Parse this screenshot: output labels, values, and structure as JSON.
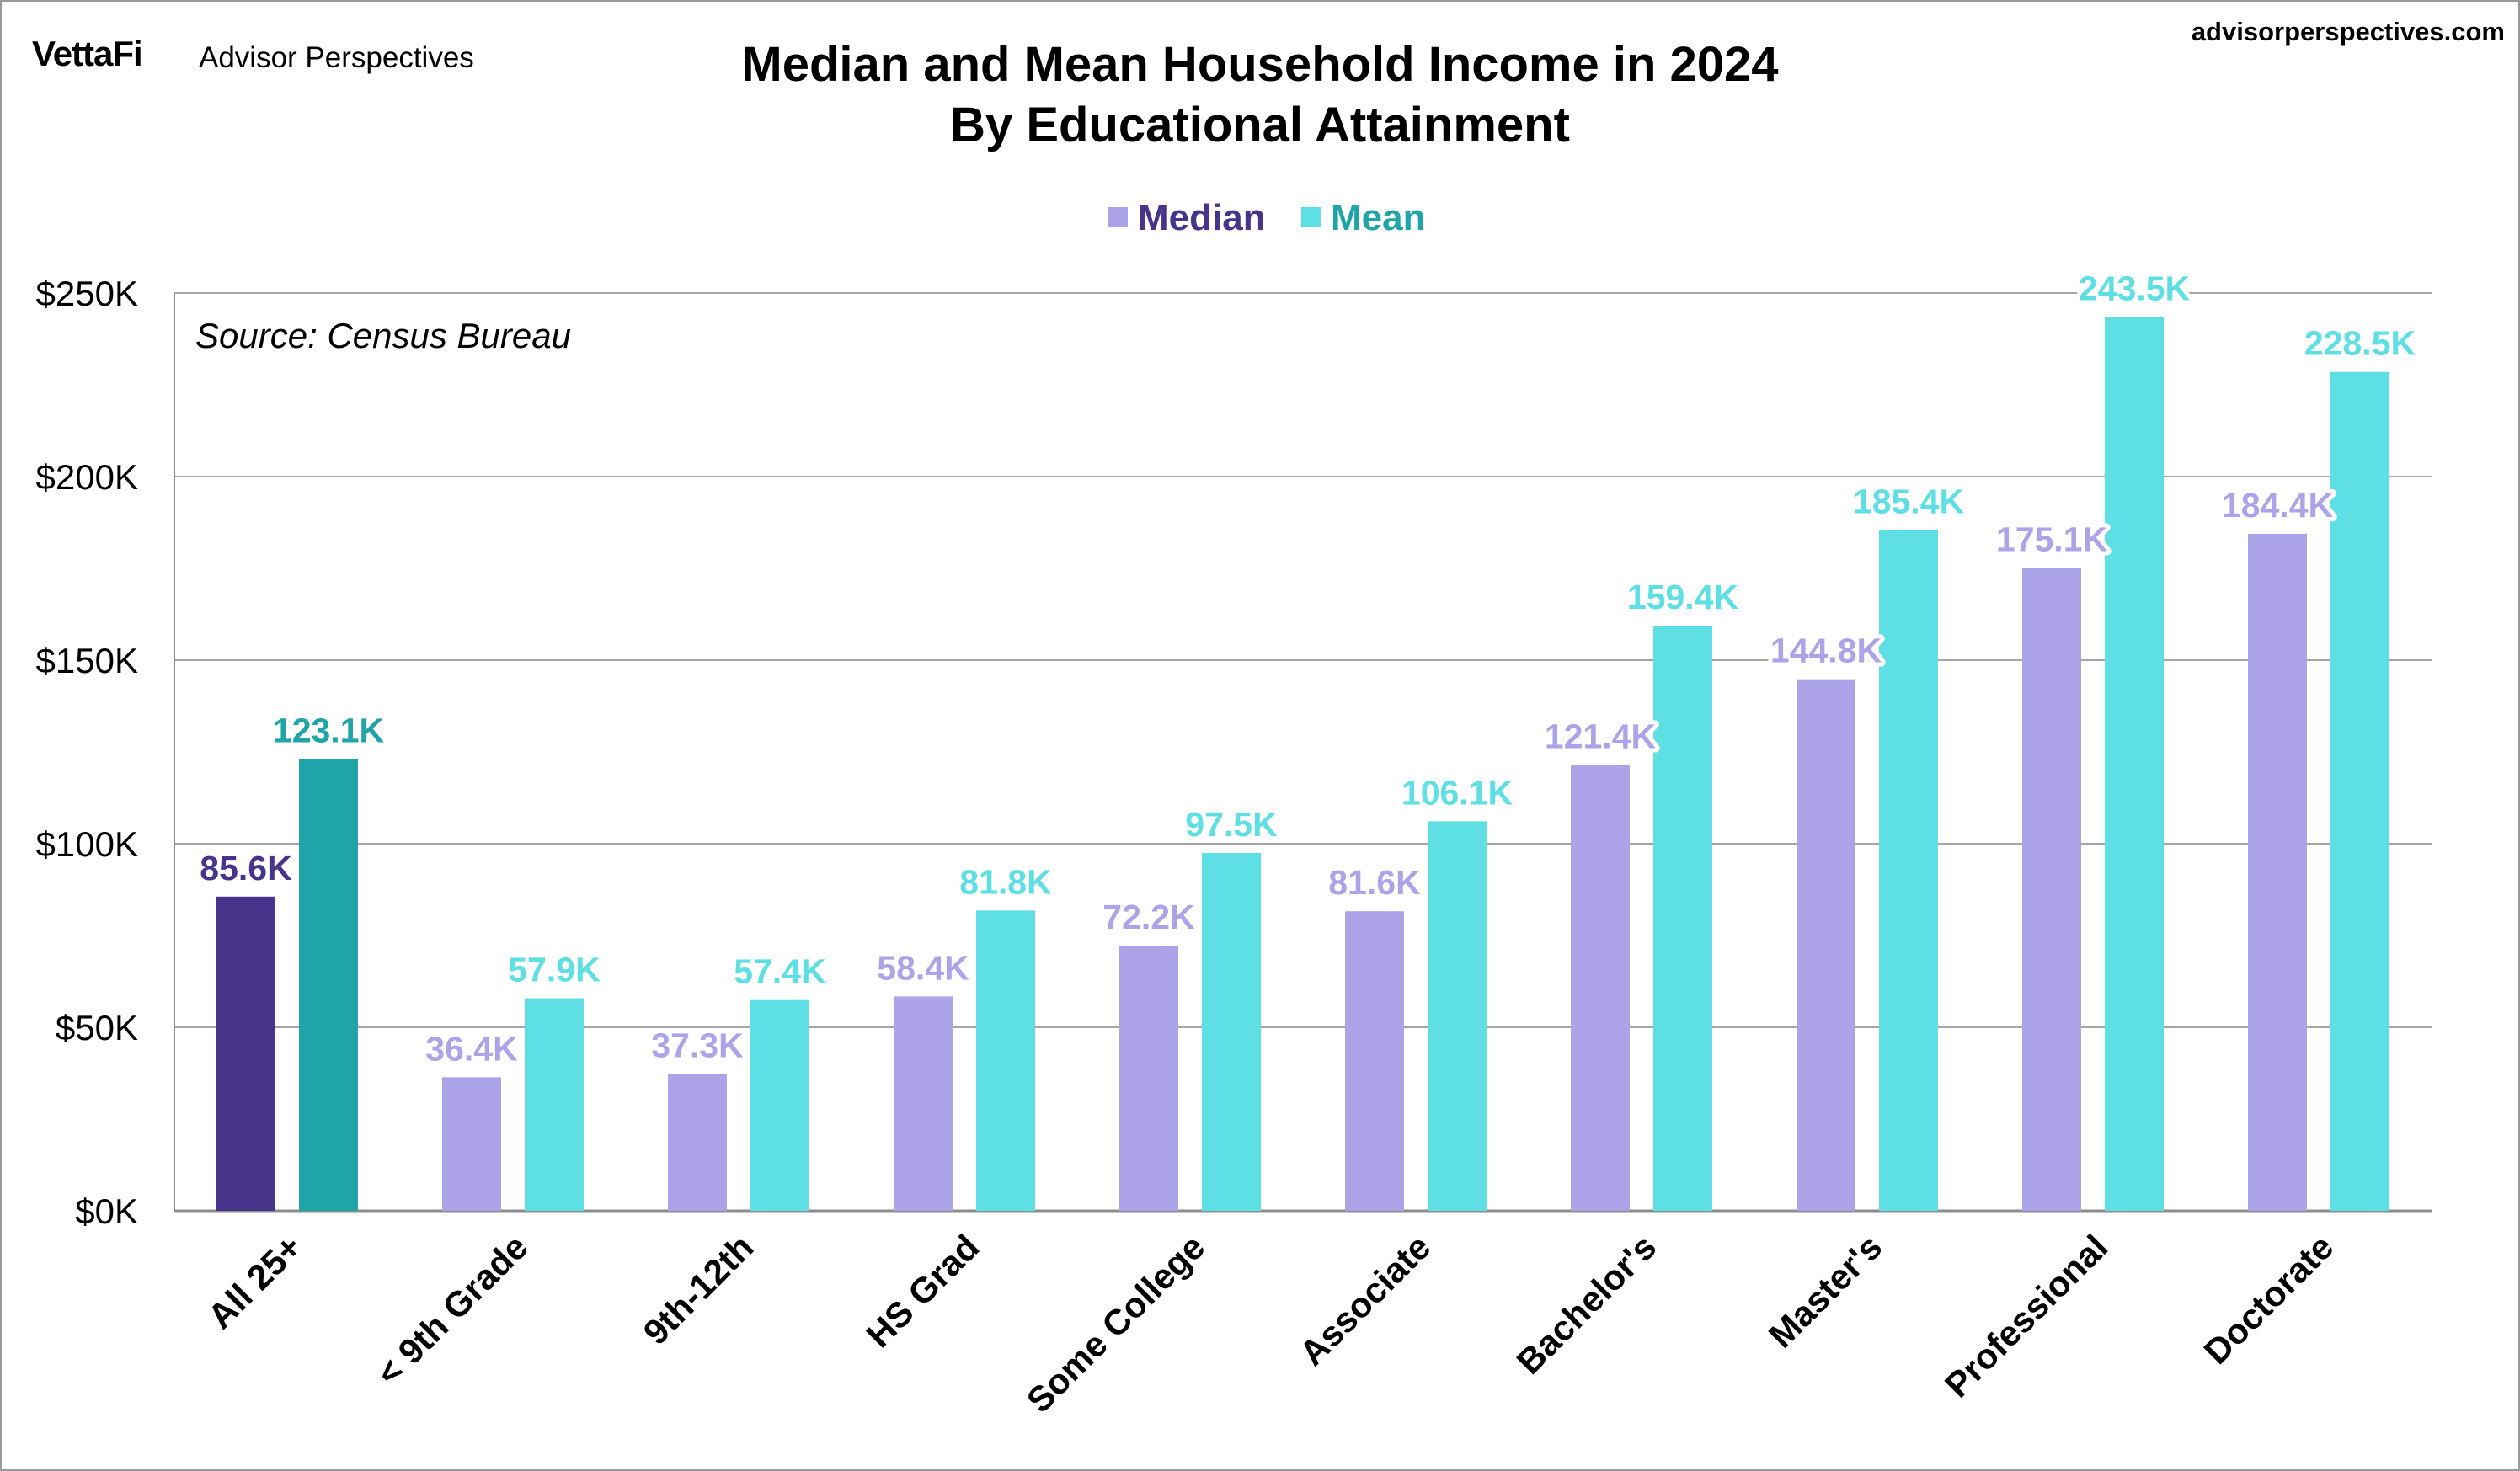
{
  "header": {
    "brand": "VettaFi",
    "brand_sub": "Advisor Perspectives",
    "site": "advisorperspectives.com"
  },
  "chart_data": {
    "type": "bar",
    "title": "Median and Mean Household Income in 2024",
    "subtitle": "By Educational Attainment",
    "annotation": "Source: Census Bureau",
    "xlabel": "",
    "ylabel": "",
    "categories": [
      "All 25+",
      "< 9th Grade",
      "9th-12th",
      "HS Grad",
      "Some College",
      "Associate",
      "Bachelor's",
      "Master's",
      "Professional",
      "Doctorate"
    ],
    "series": [
      {
        "name": "Median",
        "values": [
          85.6,
          36.4,
          37.3,
          58.4,
          72.2,
          81.6,
          121.4,
          144.8,
          175.1,
          184.4
        ],
        "labels": [
          "85.6K",
          "36.4K",
          "37.3K",
          "58.4K",
          "72.2K",
          "81.6K",
          "121.4K",
          "144.8K",
          "175.1K",
          "184.4K"
        ],
        "color": "#ada3e8",
        "highlight_color": "#47348b"
      },
      {
        "name": "Mean",
        "values": [
          123.1,
          57.9,
          57.4,
          81.8,
          97.5,
          106.1,
          159.4,
          185.4,
          243.5,
          228.5
        ],
        "labels": [
          "123.1K",
          "57.9K",
          "57.4K",
          "81.8K",
          "97.5K",
          "106.1K",
          "159.4K",
          "185.4K",
          "243.5K",
          "228.5K"
        ],
        "color": "#5edfe3",
        "highlight_color": "#1fa5a8"
      }
    ],
    "highlight_index": 0,
    "ylim": [
      0,
      250
    ],
    "yticks": [
      0,
      50,
      100,
      150,
      200,
      250
    ],
    "ytick_labels": [
      "$0K",
      "$50K",
      "$100K",
      "$150K",
      "$200K",
      "$250K"
    ],
    "grid": true,
    "legend_position": "top-center",
    "legend_text_colors": [
      "#47348b",
      "#1fa5a8"
    ]
  }
}
